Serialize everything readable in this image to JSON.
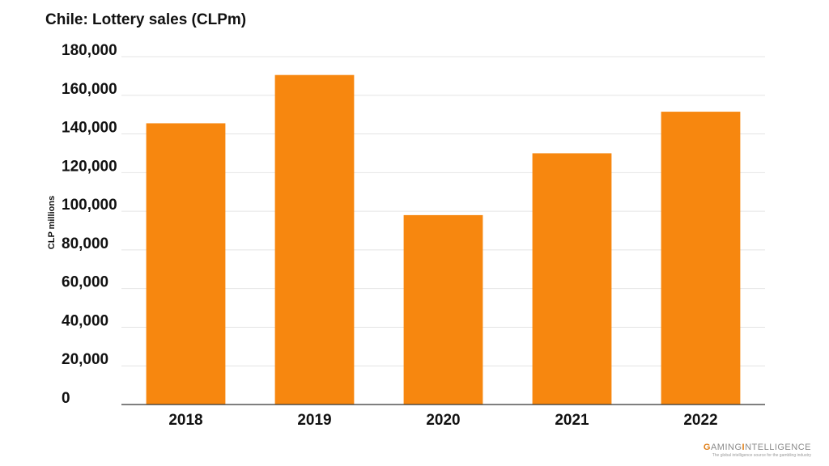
{
  "chart_data": {
    "type": "bar",
    "title": "Chile: Lottery sales (CLPm)",
    "ylabel": "CLP millions",
    "xlabel": "",
    "categories": [
      "2018",
      "2019",
      "2020",
      "2021",
      "2022"
    ],
    "values": [
      145500,
      170500,
      98000,
      130000,
      151500
    ],
    "ylim": [
      0,
      180000
    ],
    "yticks": [
      0,
      20000,
      40000,
      60000,
      80000,
      100000,
      120000,
      140000,
      160000,
      180000
    ],
    "ytick_labels": [
      "0",
      "20,000",
      "40,000",
      "60,000",
      "80,000",
      "100,000",
      "120,000",
      "140,000",
      "160,000",
      "180,000"
    ],
    "bar_color": "#f7870f",
    "grid": true,
    "legend": "none"
  },
  "branding": {
    "name_prefix": "G",
    "name_rest": "AMING",
    "name_suffix_initial": "I",
    "name_suffix_rest": "NTELLIGENCE",
    "tagline": "The global intelligence source for the gambling industry"
  }
}
